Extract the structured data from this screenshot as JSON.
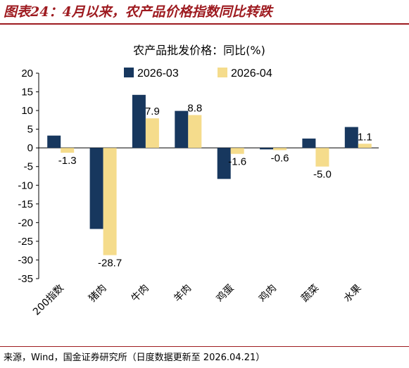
{
  "figure": {
    "title": "图表24：4月以来，农产品价格指数同比转跌",
    "source": "来源，Wind，国金证券研究所（日度数据更新至 2026.04.21）"
  },
  "colors": {
    "series_2026_03": "#17375e",
    "series_2026_04": "#f5dc8c",
    "accent": "#9e1b20"
  },
  "chart_data": {
    "type": "bar",
    "title": "农产品批发价格：同比(%)",
    "categories": [
      "200指数",
      "猪肉",
      "牛肉",
      "羊肉",
      "鸡蛋",
      "鸡肉",
      "蔬菜",
      "水果"
    ],
    "series": [
      {
        "name": "2026-03",
        "values": [
          3.3,
          -21.7,
          14.2,
          9.9,
          -8.3,
          -0.4,
          2.5,
          5.6
        ]
      },
      {
        "name": "2026-04",
        "values": [
          -1.3,
          -28.7,
          7.9,
          8.8,
          -1.6,
          -0.6,
          -5.0,
          1.1
        ]
      }
    ],
    "data_labels": [
      "-1.3",
      "-28.7",
      "7.9",
      "8.8",
      "-1.6",
      "-0.6",
      "-5.0",
      "1.1"
    ],
    "ylim": [
      -35,
      20
    ],
    "yticks": [
      "20",
      "15",
      "10",
      "5",
      "0",
      "-5",
      "-10",
      "-15",
      "-20",
      "-25",
      "-30",
      "-35"
    ],
    "legend_position": "top",
    "grid": false
  }
}
